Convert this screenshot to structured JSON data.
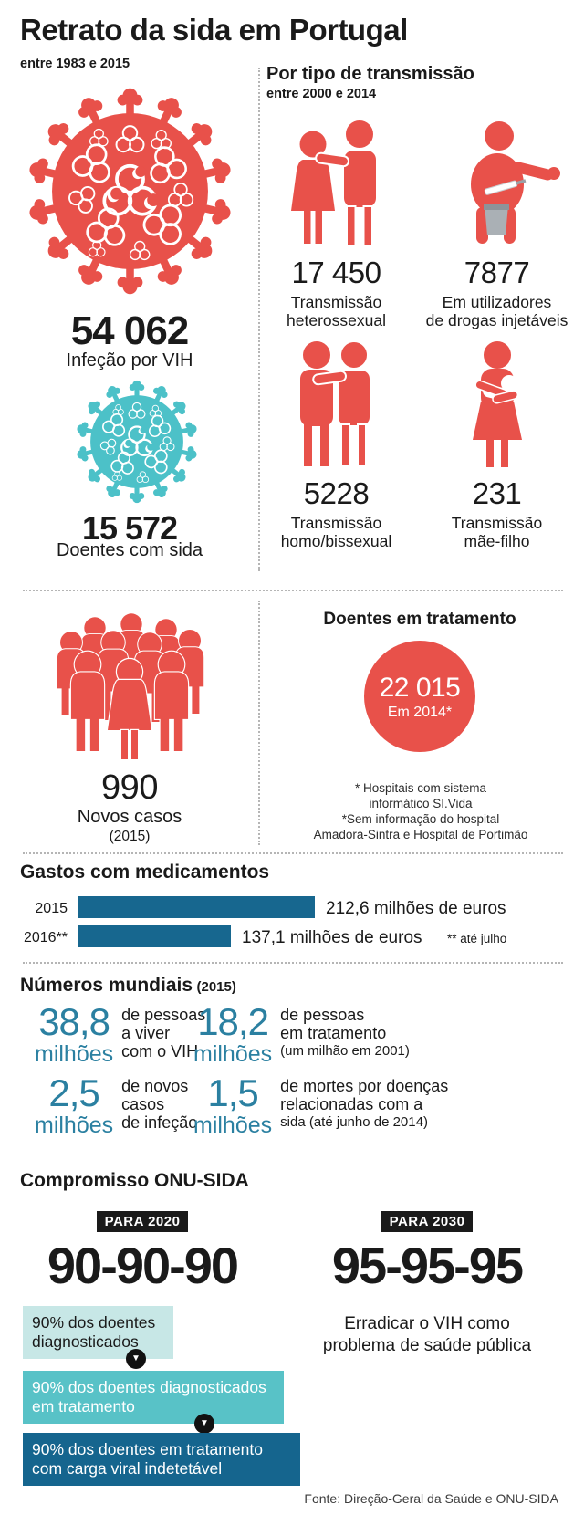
{
  "title": "Retrato da sida em Portugal",
  "palette": {
    "red": "#e8514a",
    "teal": "#4cc1c8",
    "petrol_blue": "#17678f",
    "stat_number_blue": "#2b80a1",
    "ink": "#1a1a1a"
  },
  "icons": {
    "virus_red": "virus-icon",
    "virus_teal": "virus-icon",
    "hetero_couple": "hetero-couple-icon",
    "drug_user": "drug-user-icon",
    "male_couple": "male-couple-icon",
    "mother_child": "mother-child-icon",
    "crowd": "crowd-icon",
    "arrow_down": "arrow-down-icon"
  },
  "section_overview": {
    "period": "entre 1983 e 2015",
    "stats": [
      {
        "value": "54 062",
        "label": "Infeção por VIH"
      },
      {
        "value": "15 572",
        "label": "Doentes com sida"
      }
    ]
  },
  "section_transmission": {
    "heading": "Por tipo de transmissão",
    "period": "entre 2000 e 2014",
    "items": [
      {
        "value": "17 450",
        "lines": [
          "Transmissão",
          "heterossexual"
        ]
      },
      {
        "value": "7877",
        "lines": [
          "Em utilizadores",
          "de drogas injetáveis"
        ]
      },
      {
        "value": "5228",
        "lines": [
          "Transmissão",
          "homo/bissexual"
        ]
      },
      {
        "value": "231",
        "lines": [
          "Transmissão",
          "mãe-filho"
        ]
      }
    ]
  },
  "section_new_cases": {
    "value": "990",
    "label": "Novos casos",
    "sub": "(2015)"
  },
  "section_treatment": {
    "heading": "Doentes em tratamento",
    "circle_value": "22 015",
    "circle_sub": "Em 2014*",
    "footnotes": [
      "* Hospitais com sistema",
      "informático SI.Vida",
      "*Sem informação do hospital",
      "Amadora-Sintra e Hospital de Portimão"
    ]
  },
  "chart_data": {
    "type": "bar",
    "orientation": "horizontal",
    "title": "Gastos com medicamentos",
    "categories": [
      "2015",
      "2016**"
    ],
    "values": [
      212.6,
      137.1
    ],
    "value_labels": [
      "212,6 milhões de euros",
      "137,1 milhões de euros"
    ],
    "unit": "milhões de euros",
    "xlim": [
      0,
      212.6
    ],
    "bar_color": "#17678f",
    "grid": false,
    "legend": false,
    "note": "** até julho"
  },
  "section_world": {
    "heading": "Números mundiais",
    "heading_sub": "(2015)",
    "stats": [
      {
        "value": "38,8",
        "unit": "milhões",
        "lines": [
          "de pessoas",
          "a viver",
          "com o VIH"
        ]
      },
      {
        "value": "18,2",
        "unit": "milhões",
        "lines": [
          "de pessoas",
          "em tratamento",
          "(um milhão em 2001)"
        ]
      },
      {
        "value": "2,5",
        "unit": "milhões",
        "lines": [
          "de novos",
          "casos",
          "de infeção"
        ]
      },
      {
        "value": "1,5",
        "unit": "milhões",
        "lines": [
          "de mortes por doenças",
          "relacionadas com a",
          "sida (até junho de 2014)"
        ]
      }
    ]
  },
  "commitment": {
    "heading": "Compromisso ONU-SIDA",
    "arrow_glyph": "▼",
    "col2020": {
      "badge": "PARA 2020",
      "big": "90-90-90",
      "steps": [
        {
          "text": "90% dos doentes diagnosticados",
          "bg": "#c7e7e6",
          "fg": "#1a1a1a"
        },
        {
          "text": "90% dos doentes diagnosticados em tratamento",
          "bg": "#58c2c7",
          "fg": "#ffffff"
        },
        {
          "text": "90% dos doentes em tratamento com carga viral indetetável",
          "bg": "#15658e",
          "fg": "#ffffff"
        }
      ]
    },
    "col2030": {
      "badge": "PARA 2030",
      "big": "95-95-95",
      "lines": [
        "Erradicar o VIH como",
        "problema de saúde pública"
      ]
    }
  },
  "footer": {
    "source": "Fonte: Direção-Geral da Saúde e ONU-SIDA"
  }
}
